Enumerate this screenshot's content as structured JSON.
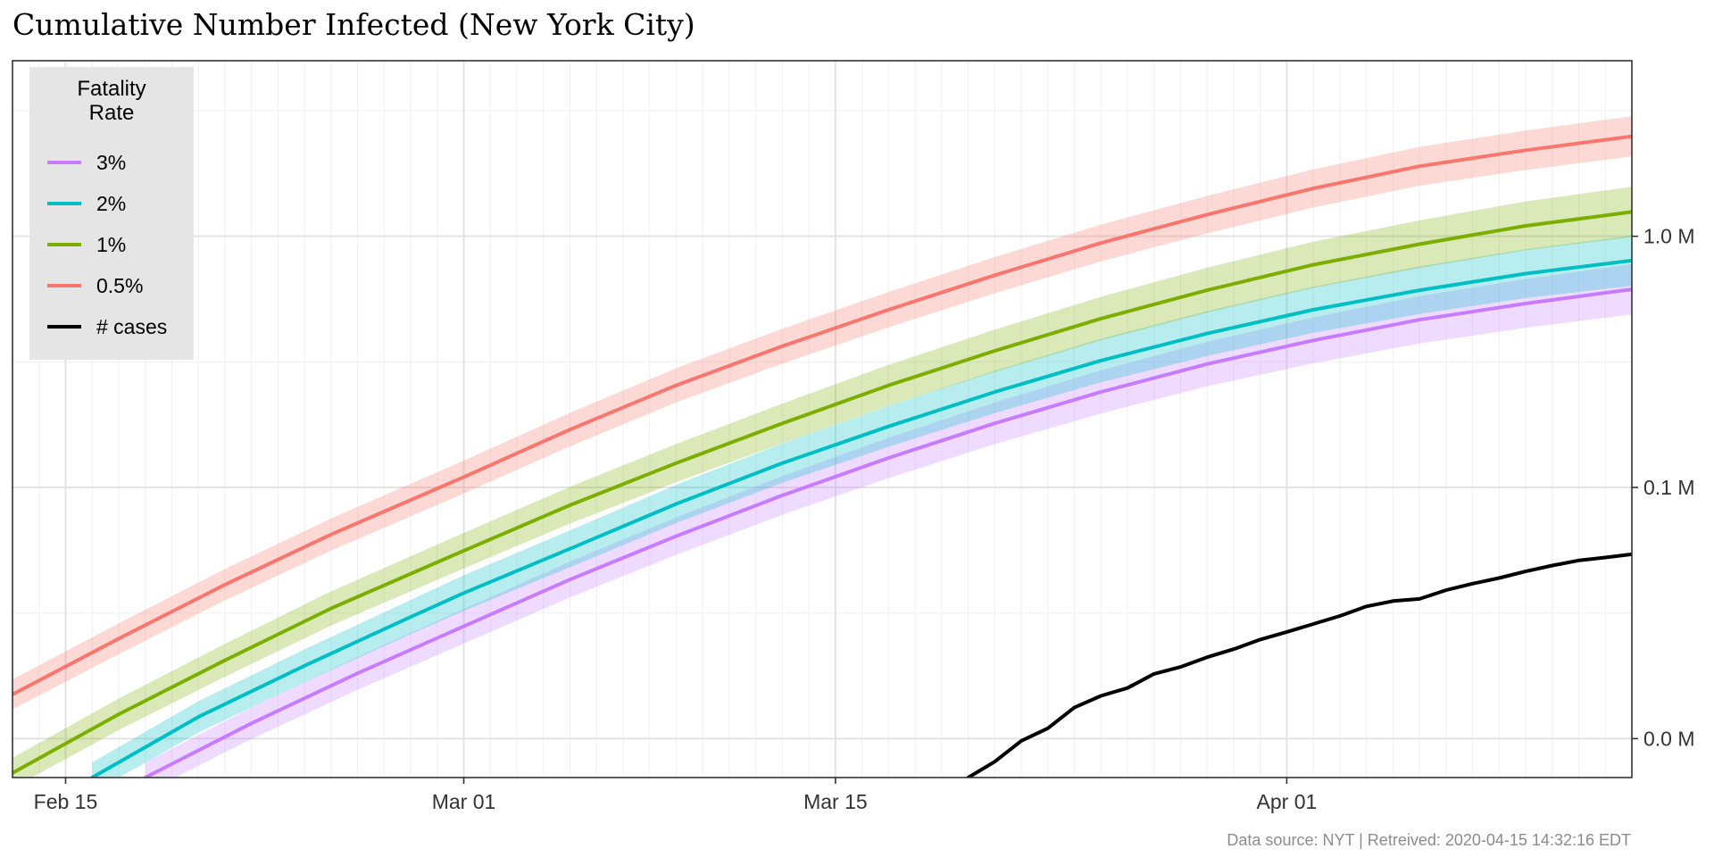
{
  "chart_data": {
    "type": "line",
    "title": "Cumulative Number Infected (New York City)",
    "caption": "Data source: NYT  |  Retreived: 2020-04-15 14:32:16 EDT",
    "xlabel": "",
    "ylabel": "",
    "x_scale": "date",
    "y_scale": "log10",
    "xlim": [
      "2020-02-13",
      "2020-04-14"
    ],
    "ylim": [
      7000,
      5000000
    ],
    "x_ticks": [
      {
        "value": "2020-02-15",
        "label": "Feb 15"
      },
      {
        "value": "2020-03-01",
        "label": "Mar 01"
      },
      {
        "value": "2020-03-15",
        "label": "Mar 15"
      },
      {
        "value": "2020-04-01",
        "label": "Apr 01"
      }
    ],
    "y_ticks": [
      {
        "value": 10000,
        "label": "0.0 M"
      },
      {
        "value": 100000,
        "label": "0.1 M"
      },
      {
        "value": 1000000,
        "label": "1.0 M"
      }
    ],
    "grid": true,
    "legend": {
      "title_lines": [
        "Fatality",
        "Rate"
      ],
      "position": "top-left"
    },
    "series": [
      {
        "name": "3%",
        "color": "#C77CFF",
        "points": [
          [
            "2020-02-18",
            7000
          ],
          [
            "2020-02-22",
            11500
          ],
          [
            "2020-02-26",
            18200
          ],
          [
            "2020-03-01",
            28000
          ],
          [
            "2020-03-05",
            43000
          ],
          [
            "2020-03-09",
            64000
          ],
          [
            "2020-03-13",
            93000
          ],
          [
            "2020-03-17",
            131000
          ],
          [
            "2020-03-21",
            180000
          ],
          [
            "2020-03-25",
            240000
          ],
          [
            "2020-03-29",
            310000
          ],
          [
            "2020-04-02",
            385000
          ],
          [
            "2020-04-06",
            465000
          ],
          [
            "2020-04-10",
            540000
          ],
          [
            "2020-04-14",
            615000
          ]
        ],
        "band": {
          "width_start": 0.06,
          "width_end": 0.1
        }
      },
      {
        "name": "2%",
        "color": "#00BFC4",
        "points": [
          [
            "2020-02-16",
            7000
          ],
          [
            "2020-02-20",
            12200
          ],
          [
            "2020-02-24",
            19500
          ],
          [
            "2020-02-28",
            30500
          ],
          [
            "2020-03-01",
            38000
          ],
          [
            "2020-03-05",
            57000
          ],
          [
            "2020-03-09",
            86000
          ],
          [
            "2020-03-13",
            125000
          ],
          [
            "2020-03-17",
            175000
          ],
          [
            "2020-03-21",
            240000
          ],
          [
            "2020-03-25",
            320000
          ],
          [
            "2020-03-29",
            410000
          ],
          [
            "2020-04-02",
            510000
          ],
          [
            "2020-04-06",
            610000
          ],
          [
            "2020-04-10",
            710000
          ],
          [
            "2020-04-14",
            800000
          ]
        ],
        "band": {
          "width_start": 0.06,
          "width_end": 0.1
        }
      },
      {
        "name": "1%",
        "color": "#7CAE00",
        "points": [
          [
            "2020-02-13",
            7300
          ],
          [
            "2020-02-17",
            12500
          ],
          [
            "2020-02-21",
            20500
          ],
          [
            "2020-02-25",
            33000
          ],
          [
            "2020-03-01",
            56000
          ],
          [
            "2020-03-05",
            85000
          ],
          [
            "2020-03-09",
            125000
          ],
          [
            "2020-03-13",
            180000
          ],
          [
            "2020-03-17",
            255000
          ],
          [
            "2020-03-21",
            350000
          ],
          [
            "2020-03-25",
            470000
          ],
          [
            "2020-03-29",
            610000
          ],
          [
            "2020-04-02",
            770000
          ],
          [
            "2020-04-06",
            930000
          ],
          [
            "2020-04-10",
            1100000
          ],
          [
            "2020-04-14",
            1250000
          ]
        ],
        "band": {
          "width_start": 0.06,
          "width_end": 0.1
        }
      },
      {
        "name": "0.5%",
        "color": "#F8766D",
        "points": [
          [
            "2020-02-13",
            15000
          ],
          [
            "2020-02-17",
            25000
          ],
          [
            "2020-02-21",
            41000
          ],
          [
            "2020-02-25",
            65000
          ],
          [
            "2020-03-01",
            110000
          ],
          [
            "2020-03-05",
            170000
          ],
          [
            "2020-03-09",
            255000
          ],
          [
            "2020-03-13",
            365000
          ],
          [
            "2020-03-17",
            510000
          ],
          [
            "2020-03-21",
            700000
          ],
          [
            "2020-03-25",
            940000
          ],
          [
            "2020-03-29",
            1220000
          ],
          [
            "2020-04-02",
            1550000
          ],
          [
            "2020-04-06",
            1900000
          ],
          [
            "2020-04-10",
            2200000
          ],
          [
            "2020-04-14",
            2500000
          ]
        ],
        "band": {
          "width_start": 0.06,
          "width_end": 0.08
        }
      },
      {
        "name": "# cases",
        "color": "#000000",
        "points": [
          [
            "2020-03-20",
            7000
          ],
          [
            "2020-03-21",
            8100
          ],
          [
            "2020-03-22",
            9800
          ],
          [
            "2020-03-23",
            11000
          ],
          [
            "2020-03-24",
            13300
          ],
          [
            "2020-03-25",
            14800
          ],
          [
            "2020-03-26",
            15900
          ],
          [
            "2020-03-27",
            18100
          ],
          [
            "2020-03-28",
            19300
          ],
          [
            "2020-03-29",
            21100
          ],
          [
            "2020-03-30",
            22700
          ],
          [
            "2020-03-31",
            24800
          ],
          [
            "2020-04-01",
            26600
          ],
          [
            "2020-04-02",
            28600
          ],
          [
            "2020-04-03",
            30800
          ],
          [
            "2020-04-04",
            33600
          ],
          [
            "2020-04-05",
            35300
          ],
          [
            "2020-04-06",
            36000
          ],
          [
            "2020-04-07",
            39000
          ],
          [
            "2020-04-08",
            41400
          ],
          [
            "2020-04-09",
            43600
          ],
          [
            "2020-04-10",
            46300
          ],
          [
            "2020-04-11",
            48900
          ],
          [
            "2020-04-12",
            51200
          ],
          [
            "2020-04-13",
            52600
          ],
          [
            "2020-04-14",
            54200
          ]
        ]
      }
    ]
  }
}
